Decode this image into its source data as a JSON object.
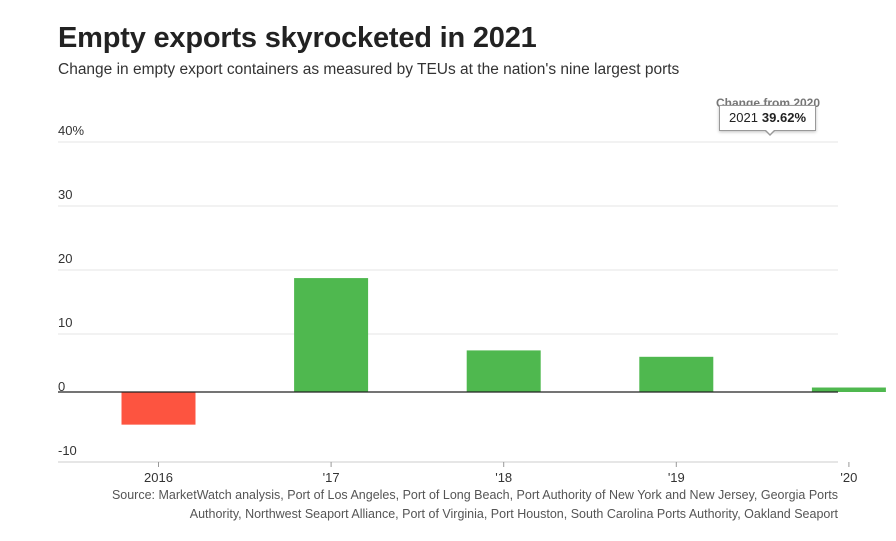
{
  "title": "Empty exports skyrocketed in 2021",
  "subtitle": "Change in empty export containers as measured by TEUs at the nation's nine largest ports",
  "corner_label": "Change from 2020",
  "tooltip": {
    "category": "2021",
    "value": "39.62%"
  },
  "source": "Source: MarketWatch analysis, Port of Los Angeles, Port of Long Beach, Port Authority of New York and New Jersey, Georgia Ports Authority, Northwest Seaport Alliance, Port of Virginia, Port Houston, South Carolina Ports Authority, Oakland Seaport",
  "colors": {
    "positive": "#4fb84f",
    "negative": "#fd5440",
    "grid": "#e4e4e4",
    "zero_line": "#222222"
  },
  "chart_data": {
    "type": "bar",
    "categories": [
      "2016",
      "'17",
      "'18",
      "'19",
      "'20",
      "'21"
    ],
    "values": [
      -5.1,
      17.8,
      6.5,
      5.5,
      0.7,
      39.62
    ],
    "ylim": [
      -10,
      40
    ],
    "yticks": [
      40,
      30,
      20,
      10,
      0,
      -10
    ],
    "ytick_labels": [
      "40%",
      "30",
      "20",
      "10",
      "0",
      "-10"
    ],
    "xlabel": "",
    "ylabel": "",
    "grid": true
  }
}
